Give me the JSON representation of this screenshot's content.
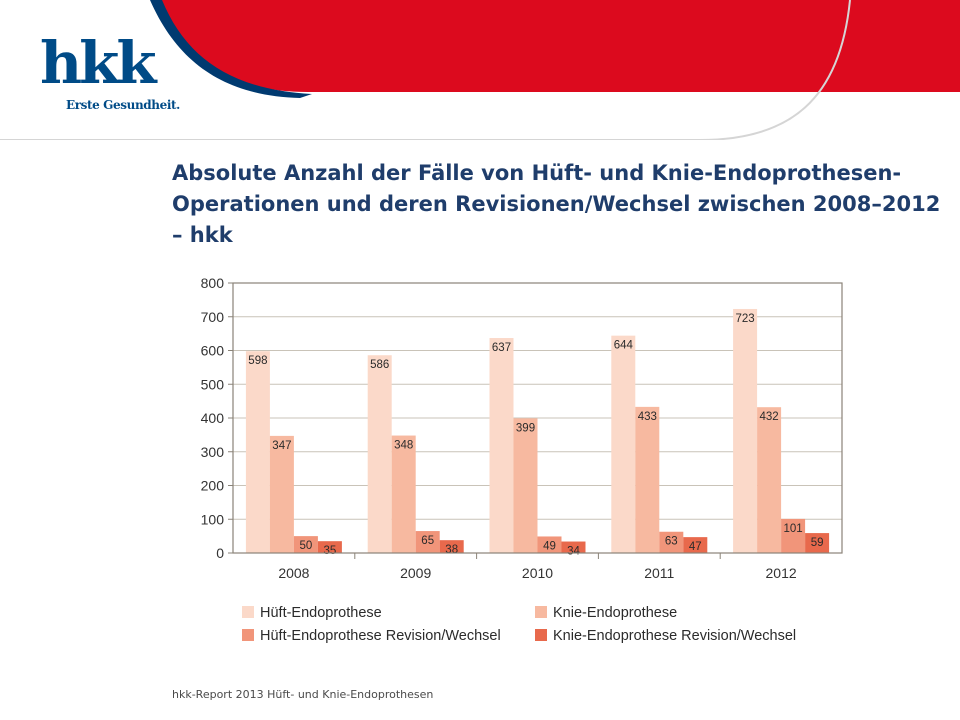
{
  "branding": {
    "logo_text": "hkk",
    "tagline": "Erste Gesundheit.",
    "colors": {
      "brand_red": "#dc0a1e",
      "brand_blue": "#004b87",
      "title_blue": "#1f3d6b"
    }
  },
  "title": "Absolute Anzahl der Fälle von Hüft- und Knie-Endoprothesen-Operationen und deren Revisionen/Wechsel zwischen 2008–2012 – hkk",
  "footer": "hkk-Report 2013 Hüft- und Knie-Endoprothesen",
  "chart_data": {
    "type": "bar",
    "categories": [
      "2008",
      "2009",
      "2010",
      "2011",
      "2012"
    ],
    "series": [
      {
        "name": "Hüft-Endoprothese",
        "color": "#fbd9c9",
        "values": [
          598,
          586,
          637,
          644,
          723
        ]
      },
      {
        "name": "Knie-Endoprothese",
        "color": "#f7b9a0",
        "values": [
          347,
          348,
          399,
          433,
          432
        ]
      },
      {
        "name": "Hüft-Endoprothese Revision/Wechsel",
        "color": "#f1957a",
        "values": [
          50,
          65,
          49,
          63,
          101
        ]
      },
      {
        "name": "Knie-Endoprothese Revision/Wechsel",
        "color": "#e8694c",
        "values": [
          35,
          38,
          34,
          47,
          59
        ]
      }
    ],
    "ylim": [
      0,
      800
    ],
    "yticks": [
      "0",
      "100",
      "200",
      "300",
      "400",
      "500",
      "600",
      "700",
      "800"
    ],
    "grid": true,
    "legend": "bottom",
    "xlabel": "",
    "ylabel": ""
  }
}
